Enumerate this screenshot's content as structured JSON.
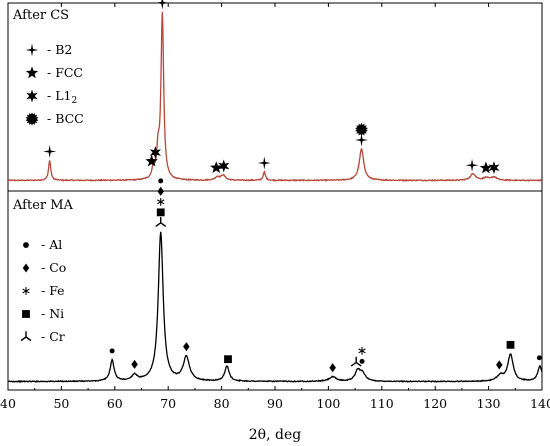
{
  "chart_data": {
    "type": "line",
    "xlabel": "2θ, deg",
    "ylabel": "",
    "xlim": [
      40,
      140
    ],
    "xticks": [
      40,
      50,
      60,
      70,
      80,
      90,
      100,
      110,
      120,
      130,
      140
    ],
    "grid": false,
    "panels": [
      {
        "label": "After CS",
        "line_color": "#b5473a",
        "legend_placement": "top-left",
        "legend": [
          {
            "symbol": "cross4",
            "text": "- B2"
          },
          {
            "symbol": "star5",
            "text": "- FCC"
          },
          {
            "symbol": "star6",
            "text": "- L1",
            "subscript": "2"
          },
          {
            "symbol": "burst",
            "text": "- BCC"
          }
        ],
        "baseline": 0.04,
        "peaks": [
          {
            "x": 47.8,
            "h": 0.12,
            "w": 0.25
          },
          {
            "x": 67.2,
            "h": 0.06,
            "w": 0.3
          },
          {
            "x": 68.1,
            "h": 0.16,
            "w": 0.3
          },
          {
            "x": 68.9,
            "h": 1.0,
            "w": 0.3
          },
          {
            "x": 79.2,
            "h": 0.02,
            "w": 0.5
          },
          {
            "x": 80.3,
            "h": 0.03,
            "w": 0.5
          },
          {
            "x": 88.0,
            "h": 0.05,
            "w": 0.25
          },
          {
            "x": 106.2,
            "h": 0.19,
            "w": 0.5
          },
          {
            "x": 127.1,
            "h": 0.04,
            "w": 0.6
          },
          {
            "x": 129.5,
            "h": 0.015,
            "w": 0.6
          },
          {
            "x": 131.0,
            "h": 0.02,
            "w": 0.6
          }
        ],
        "markers": [
          {
            "x": 47.8,
            "symbols": [
              "cross4"
            ]
          },
          {
            "x": 66.9,
            "symbols": [
              "star5"
            ]
          },
          {
            "x": 67.6,
            "symbols": [
              "star6"
            ]
          },
          {
            "x": 68.9,
            "symbols": [
              "cross4",
              "burst"
            ]
          },
          {
            "x": 79.0,
            "symbols": [
              "star5"
            ]
          },
          {
            "x": 80.4,
            "symbols": [
              "star6"
            ]
          },
          {
            "x": 88.0,
            "symbols": [
              "cross4"
            ]
          },
          {
            "x": 106.2,
            "symbols": [
              "cross4",
              "burst"
            ]
          },
          {
            "x": 126.9,
            "symbols": [
              "cross4"
            ]
          },
          {
            "x": 129.5,
            "symbols": [
              "star5"
            ]
          },
          {
            "x": 131.0,
            "symbols": [
              "star6"
            ]
          }
        ]
      },
      {
        "label": "After MA",
        "line_color": "#000000",
        "legend_placement": "middle-left",
        "legend": [
          {
            "symbol": "dot",
            "text": "- Al"
          },
          {
            "symbol": "diamond",
            "text": "- Co"
          },
          {
            "symbol": "asterisk",
            "text": "- Fe"
          },
          {
            "symbol": "square",
            "text": "- Ni"
          },
          {
            "symbol": "tri",
            "text": "- Cr"
          }
        ],
        "baseline": 0.03,
        "peaks": [
          {
            "x": 59.5,
            "h": 0.14,
            "w": 0.45
          },
          {
            "x": 63.7,
            "h": 0.04,
            "w": 0.6
          },
          {
            "x": 68.6,
            "h": 1.0,
            "w": 0.55
          },
          {
            "x": 73.4,
            "h": 0.16,
            "w": 0.7
          },
          {
            "x": 81.0,
            "h": 0.1,
            "w": 0.5
          },
          {
            "x": 100.8,
            "h": 0.03,
            "w": 0.8
          },
          {
            "x": 105.5,
            "h": 0.07,
            "w": 0.6
          },
          {
            "x": 106.4,
            "h": 0.05,
            "w": 0.6
          },
          {
            "x": 132.2,
            "h": 0.04,
            "w": 0.7
          },
          {
            "x": 134.1,
            "h": 0.18,
            "w": 0.6
          },
          {
            "x": 139.6,
            "h": 0.1,
            "w": 0.5
          }
        ],
        "markers": [
          {
            "x": 59.5,
            "symbols": [
              "dot"
            ]
          },
          {
            "x": 63.7,
            "symbols": [
              "diamond"
            ]
          },
          {
            "x": 68.6,
            "symbols": [
              "tri",
              "square",
              "asterisk",
              "diamond",
              "dot"
            ]
          },
          {
            "x": 73.4,
            "symbols": [
              "diamond"
            ]
          },
          {
            "x": 81.2,
            "symbols": [
              "square"
            ]
          },
          {
            "x": 100.8,
            "symbols": [
              "diamond"
            ]
          },
          {
            "x": 105.2,
            "symbols": [
              "tri"
            ]
          },
          {
            "x": 106.3,
            "symbols": [
              "dot",
              "asterisk"
            ]
          },
          {
            "x": 132.0,
            "symbols": [
              "diamond"
            ]
          },
          {
            "x": 134.1,
            "symbols": [
              "square"
            ]
          },
          {
            "x": 139.5,
            "symbols": [
              "dot"
            ]
          }
        ]
      }
    ]
  }
}
